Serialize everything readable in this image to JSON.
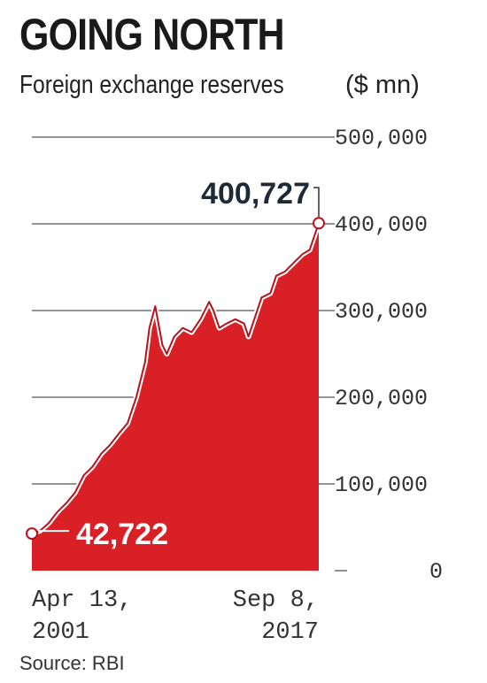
{
  "header": {
    "title": "GOING NORTH",
    "subtitle": "Foreign exchange reserves",
    "unit": "($ mn)"
  },
  "footer": {
    "source": "Source: RBI"
  },
  "colors": {
    "fill": "#d92026",
    "line": "#b5121b",
    "text": "#222222",
    "grid": "#555555"
  },
  "chart_data": {
    "type": "area",
    "title": "GOING NORTH",
    "subtitle": "Foreign exchange reserves",
    "ylabel": "($ mn)",
    "ylim": [
      0,
      500000
    ],
    "yticks": [
      0,
      100000,
      200000,
      300000,
      400000,
      500000
    ],
    "ytick_labels": [
      "0",
      "100,000",
      "200,000",
      "300,000",
      "400,000",
      "500,000"
    ],
    "x_start_label": [
      "Apr 13,",
      "2001"
    ],
    "x_end_label": [
      "Sep 8,",
      "2017"
    ],
    "start": {
      "date": "2001-04-13",
      "value": 42722,
      "label": "42,722"
    },
    "end": {
      "date": "2017-09-08",
      "value": 400727,
      "label": "400,727"
    },
    "x": [
      "2001-04",
      "2001-10",
      "2002-04",
      "2002-10",
      "2003-04",
      "2003-10",
      "2004-04",
      "2004-10",
      "2005-04",
      "2005-10",
      "2006-04",
      "2006-10",
      "2007-04",
      "2007-10",
      "2008-01",
      "2008-05",
      "2008-10",
      "2009-01",
      "2009-06",
      "2009-12",
      "2010-06",
      "2010-12",
      "2011-06",
      "2011-09",
      "2012-01",
      "2012-06",
      "2012-12",
      "2013-06",
      "2013-09",
      "2014-01",
      "2014-06",
      "2014-12",
      "2015-04",
      "2015-10",
      "2016-04",
      "2016-10",
      "2017-03",
      "2017-06",
      "2017-09"
    ],
    "values": [
      42722,
      46000,
      55000,
      68000,
      78000,
      90000,
      110000,
      120000,
      135000,
      145000,
      158000,
      170000,
      200000,
      240000,
      280000,
      305000,
      260000,
      250000,
      270000,
      280000,
      275000,
      290000,
      310000,
      300000,
      280000,
      285000,
      290000,
      285000,
      270000,
      290000,
      315000,
      320000,
      340000,
      345000,
      355000,
      365000,
      370000,
      385000,
      400727
    ],
    "grid": true
  }
}
